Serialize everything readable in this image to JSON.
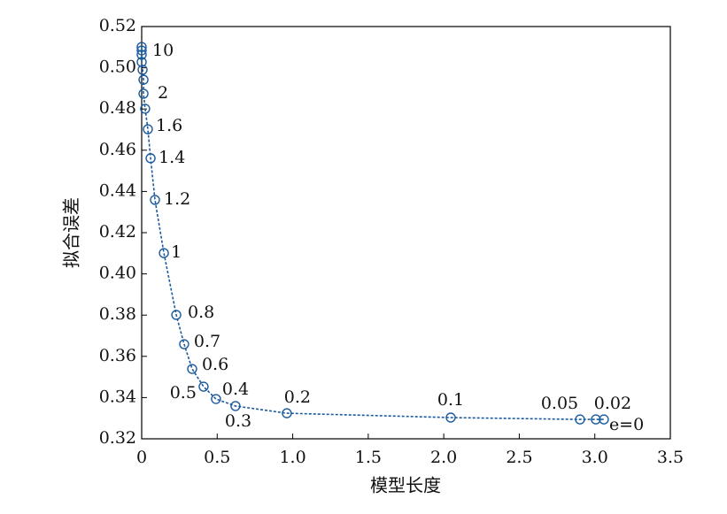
{
  "chart_data": {
    "type": "line",
    "x_label": "模型长度",
    "y_label": "拟合误差",
    "xlim": [
      0,
      3.5
    ],
    "ylim": [
      0.32,
      0.52
    ],
    "xticks": [
      0,
      0.5,
      {
        "value": 1,
        "label": "1.0"
      },
      1.5,
      {
        "value": 2,
        "label": "2.0"
      },
      2.5,
      {
        "value": 3,
        "label": "3.0"
      },
      3.5
    ],
    "yticks": [
      0.32,
      0.34,
      0.36,
      0.38,
      {
        "value": 0.4,
        "label": "0.40"
      },
      0.42,
      0.44,
      0.46,
      0.48,
      {
        "value": 0.5,
        "label": "0.50"
      },
      0.52
    ],
    "series": [
      {
        "color": "#1a5a9e",
        "x": [
          0,
          0,
          0,
          0,
          0.006,
          0.012,
          0.012,
          0.023,
          0.041,
          0.059,
          0.088,
          0.147,
          0.229,
          0.281,
          0.334,
          0.41,
          0.492,
          0.621,
          0.961,
          2.046,
          2.902,
          3.007,
          3.06
        ],
        "values": [
          0.5101,
          0.5084,
          0.5063,
          0.5028,
          0.499,
          0.4942,
          0.4874,
          0.4801,
          0.4702,
          0.4561,
          0.4359,
          0.4101,
          0.3801,
          0.3659,
          0.3539,
          0.3453,
          0.3393,
          0.3359,
          0.3324,
          0.3303,
          0.3294,
          0.3294,
          0.3294
        ],
        "labels": [
          "10",
          null,
          null,
          null,
          null,
          null,
          "2",
          null,
          "1.6",
          "1.4",
          "1.2",
          "1",
          "0.8",
          "0.7",
          "0.6",
          "0.5",
          "0.4",
          "0.3",
          "0.2",
          "0.1",
          "0.05",
          "0.02",
          "e=0"
        ]
      }
    ]
  }
}
